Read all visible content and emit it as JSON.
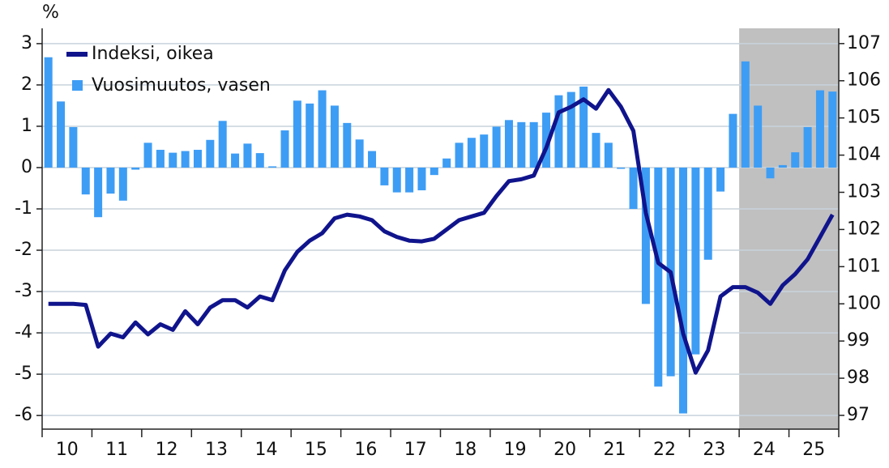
{
  "chart_data": {
    "type": "combo",
    "y_axis_label": "%",
    "categories": [
      null,
      "10",
      null,
      null,
      null,
      "11",
      null,
      null,
      null,
      "12",
      null,
      null,
      null,
      "13",
      null,
      null,
      null,
      "14",
      null,
      null,
      null,
      "15",
      null,
      null,
      null,
      "16",
      null,
      null,
      null,
      "17",
      null,
      null,
      null,
      "18",
      null,
      null,
      null,
      "19",
      null,
      null,
      null,
      "20",
      null,
      null,
      null,
      "21",
      null,
      null,
      null,
      "22",
      null,
      null,
      null,
      "23",
      null,
      null,
      null,
      "24",
      null,
      null,
      null,
      "25",
      null,
      null
    ],
    "series": [
      {
        "name": "Indeksi, oikea",
        "type": "line",
        "axis": "y2",
        "color": "#10148c",
        "values": [
          100.0,
          100.0,
          100.0,
          99.97,
          98.85,
          99.2,
          99.1,
          99.5,
          99.18,
          99.45,
          99.3,
          99.8,
          99.45,
          99.9,
          100.1,
          100.1,
          99.9,
          100.2,
          100.1,
          100.9,
          101.4,
          101.7,
          101.9,
          102.3,
          102.4,
          102.35,
          102.25,
          101.95,
          101.8,
          101.7,
          101.68,
          101.75,
          102.0,
          102.25,
          102.35,
          102.45,
          102.9,
          103.3,
          103.35,
          103.45,
          104.2,
          105.15,
          105.3,
          105.5,
          105.25,
          105.75,
          105.3,
          104.65,
          102.45,
          101.1,
          100.85,
          99.2,
          98.15,
          98.75,
          100.2,
          100.45,
          100.45,
          100.3,
          100.0,
          100.5,
          100.8,
          101.2,
          101.8,
          102.4
        ]
      },
      {
        "name": "Vuosimuutos, vasen",
        "type": "bar",
        "color": "#3d9df5",
        "values": [
          2.67,
          1.6,
          0.98,
          -0.65,
          -1.2,
          -0.63,
          -0.8,
          -0.05,
          0.6,
          0.43,
          0.36,
          0.4,
          0.43,
          0.67,
          1.13,
          0.34,
          0.58,
          0.35,
          0.03,
          0.9,
          1.62,
          1.55,
          1.87,
          1.5,
          1.08,
          0.68,
          0.4,
          -0.43,
          -0.6,
          -0.6,
          -0.55,
          -0.18,
          0.22,
          0.6,
          0.72,
          0.8,
          0.99,
          1.15,
          1.1,
          1.1,
          1.33,
          1.75,
          1.83,
          1.96,
          0.84,
          0.6,
          -0.03,
          -1.0,
          -3.3,
          -5.3,
          -5.05,
          -5.95,
          -4.52,
          -2.23,
          -0.58,
          1.3,
          2.57,
          1.5,
          -0.26,
          0.06,
          0.37,
          0.98,
          1.87,
          1.84
        ]
      }
    ],
    "ylim": [
      -6.33,
      3.37
    ],
    "yticks": [
      3,
      2,
      1,
      0,
      -1,
      -2,
      -3,
      -4,
      -5,
      -6
    ],
    "y2lim": [
      96.63,
      107.41
    ],
    "y2ticks": [
      107,
      106,
      105,
      104,
      103,
      102,
      101,
      100,
      99,
      98,
      97
    ],
    "grid": true,
    "legend": "upper left",
    "shade_start": 56,
    "shade_color": "#c0c0c0"
  }
}
